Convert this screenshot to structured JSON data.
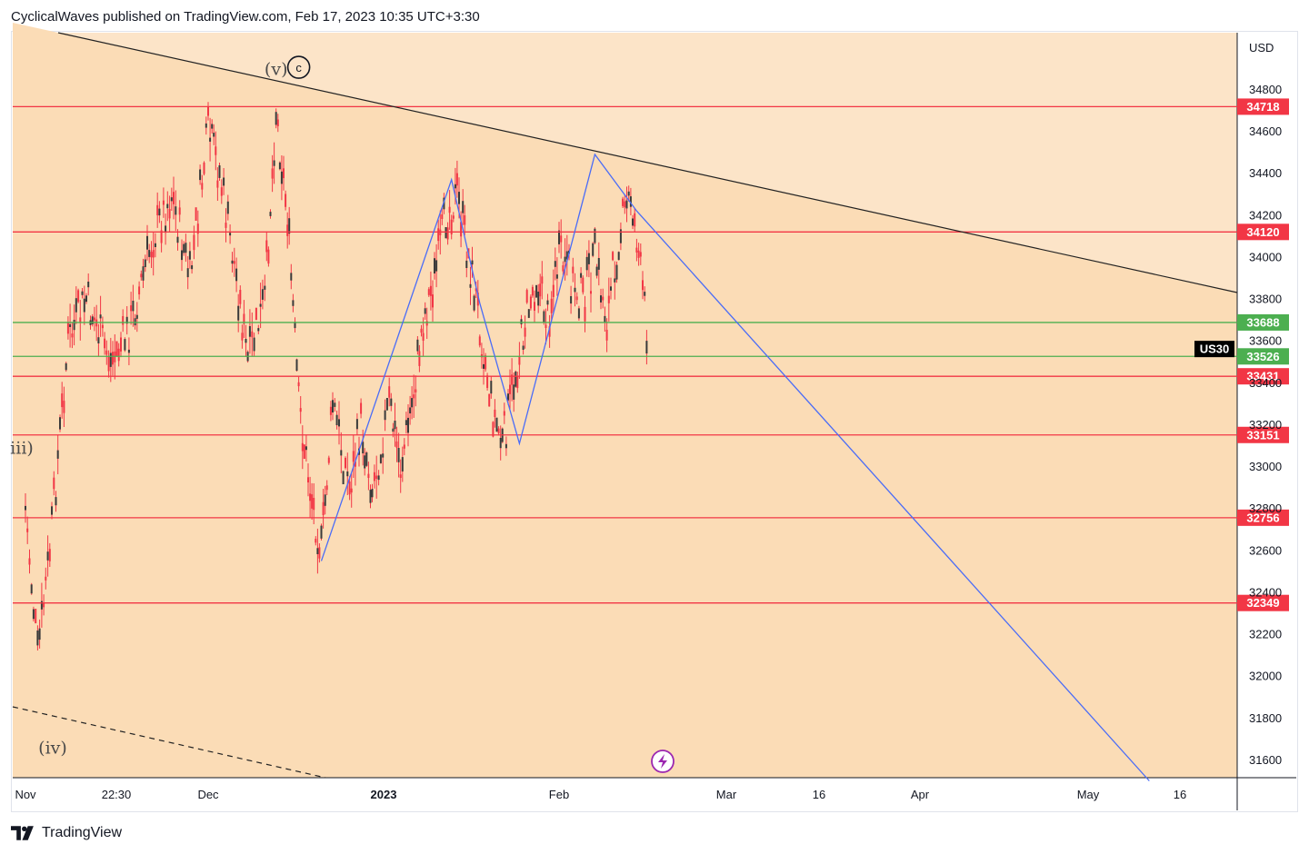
{
  "header": {
    "published_line": "CyclicalWaves published on TradingView.com, Feb 17, 2023 10:35 UTC+3:30"
  },
  "footer": {
    "brand": "TradingView",
    "logo_icon": "tradingview-logo-icon"
  },
  "colors": {
    "background_light": "#fce4c8",
    "triangle_fill": "#fbdcb6",
    "red_level": "#f23645",
    "green_level": "#4caf50",
    "pattern_line": "#4a6cf7",
    "trendline": "#222222",
    "candle": "#f23645"
  },
  "chart_data": {
    "type": "candlestick",
    "symbol": "US30",
    "currency": "USD",
    "ylim": [
      31500,
      35050
    ],
    "y_ticks": [
      31600,
      31800,
      32000,
      32200,
      32400,
      32600,
      32800,
      33000,
      33200,
      33400,
      33600,
      33800,
      34000,
      34200,
      34400,
      34600,
      34800
    ],
    "x_ticks": [
      {
        "label": "Nov",
        "bold": false
      },
      {
        "label": "22:30",
        "bold": false
      },
      {
        "label": "Dec",
        "bold": false
      },
      {
        "label": "2023",
        "bold": true
      },
      {
        "label": "Feb",
        "bold": false
      },
      {
        "label": "Mar",
        "bold": false
      },
      {
        "label": "16",
        "bold": false
      },
      {
        "label": "Apr",
        "bold": false
      },
      {
        "label": "May",
        "bold": false
      },
      {
        "label": "16",
        "bold": false
      }
    ],
    "price_levels": [
      {
        "value": 34718,
        "label": "34718",
        "color": "red"
      },
      {
        "value": 34120,
        "label": "34120",
        "color": "red"
      },
      {
        "value": 33688,
        "label": "33688",
        "color": "green"
      },
      {
        "value": 33526,
        "label": "33526",
        "color": "green"
      },
      {
        "value": 33431,
        "label": "33431",
        "color": "red"
      },
      {
        "value": 33151,
        "label": "33151",
        "color": "red"
      },
      {
        "value": 32756,
        "label": "32756",
        "color": "red"
      },
      {
        "value": 32349,
        "label": "32349",
        "color": "red"
      }
    ],
    "last_price_label": "US30",
    "last_price": 33570,
    "pattern_path": [
      {
        "date": "Dec 21",
        "value": 32550
      },
      {
        "date": "Jan 13",
        "value": 34370
      },
      {
        "date": "Jan 18",
        "value": 33780
      },
      {
        "date": "Jan 25",
        "value": 33110
      },
      {
        "date": "Feb 7",
        "value": 34490
      },
      {
        "date": "Feb 14",
        "value": 34220
      },
      {
        "date": "May 11",
        "value": 31500
      }
    ],
    "wave_labels": [
      {
        "text": "(v)",
        "date": "Dec 13",
        "value": 34870
      },
      {
        "text": "c",
        "date": "Dec 17",
        "value": 34880,
        "circled": true
      },
      {
        "text": "iii)",
        "date": "Nov 1",
        "value": 33060
      },
      {
        "text": "(iv)",
        "date": "Nov 4",
        "value": 31630
      }
    ],
    "candles_approx": [
      {
        "date": "Nov 1",
        "value": 32800
      },
      {
        "date": "Nov 3",
        "value": 32100
      },
      {
        "date": "Nov 5",
        "value": 32600
      },
      {
        "date": "Nov 8",
        "value": 33600
      },
      {
        "date": "Nov 11",
        "value": 33800
      },
      {
        "date": "Nov 15",
        "value": 33500
      },
      {
        "date": "Nov 18",
        "value": 33650
      },
      {
        "date": "Nov 22",
        "value": 34100
      },
      {
        "date": "Nov 25",
        "value": 34300
      },
      {
        "date": "Nov 28",
        "value": 33900
      },
      {
        "date": "Dec 1",
        "value": 34600
      },
      {
        "date": "Dec 3",
        "value": 34400
      },
      {
        "date": "Dec 6",
        "value": 33900
      },
      {
        "date": "Dec 8",
        "value": 33500
      },
      {
        "date": "Dec 11",
        "value": 33800
      },
      {
        "date": "Dec 13",
        "value": 34700
      },
      {
        "date": "Dec 15",
        "value": 34200
      },
      {
        "date": "Dec 17",
        "value": 33300
      },
      {
        "date": "Dec 19",
        "value": 32900
      },
      {
        "date": "Dec 21",
        "value": 32600
      },
      {
        "date": "Dec 23",
        "value": 33300
      },
      {
        "date": "Dec 26",
        "value": 32900
      },
      {
        "date": "Dec 28",
        "value": 33200
      },
      {
        "date": "Dec 30",
        "value": 32900
      },
      {
        "date": "Jan 2",
        "value": 33300
      },
      {
        "date": "Jan 4",
        "value": 33000
      },
      {
        "date": "Jan 6",
        "value": 33300
      },
      {
        "date": "Jan 8",
        "value": 33700
      },
      {
        "date": "Jan 10",
        "value": 33900
      },
      {
        "date": "Jan 12",
        "value": 34200
      },
      {
        "date": "Jan 14",
        "value": 34300
      },
      {
        "date": "Jan 16",
        "value": 34000
      },
      {
        "date": "Jan 18",
        "value": 33700
      },
      {
        "date": "Jan 20",
        "value": 33300
      },
      {
        "date": "Jan 22",
        "value": 33100
      },
      {
        "date": "Jan 24",
        "value": 33400
      },
      {
        "date": "Jan 26",
        "value": 33700
      },
      {
        "date": "Jan 28",
        "value": 33900
      },
      {
        "date": "Jan 30",
        "value": 33700
      },
      {
        "date": "Feb 1",
        "value": 34000
      },
      {
        "date": "Feb 3",
        "value": 33900
      },
      {
        "date": "Feb 5",
        "value": 33800
      },
      {
        "date": "Feb 7",
        "value": 34000
      },
      {
        "date": "Feb 9",
        "value": 33700
      },
      {
        "date": "Feb 11",
        "value": 34100
      },
      {
        "date": "Feb 13",
        "value": 34300
      },
      {
        "date": "Feb 14",
        "value": 34100
      },
      {
        "date": "Feb 16",
        "value": 33570
      }
    ]
  }
}
